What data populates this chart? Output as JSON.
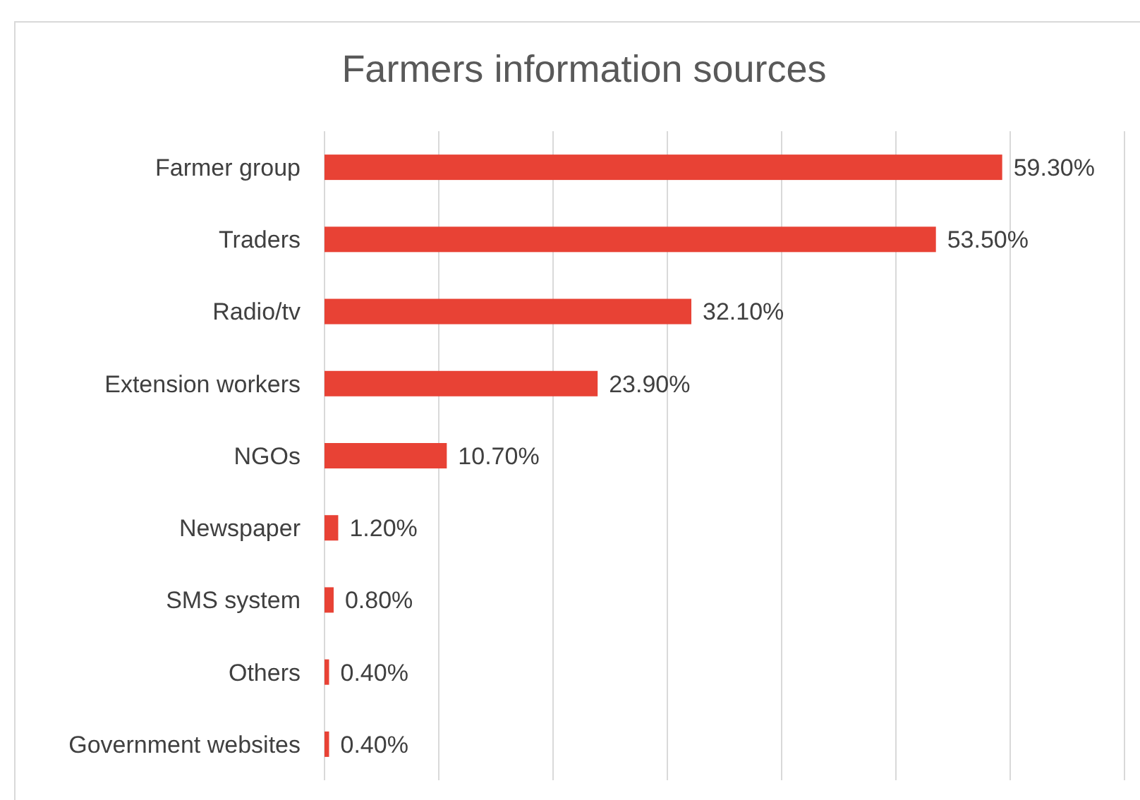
{
  "chart_data": {
    "type": "bar",
    "orientation": "horizontal",
    "title": "Farmers information sources",
    "categories": [
      "Farmer group",
      "Traders",
      "Radio/tv",
      "Extension workers",
      "NGOs",
      "Newspaper",
      "SMS system",
      "Others",
      "Government websites"
    ],
    "values": [
      59.3,
      53.5,
      32.1,
      23.9,
      10.7,
      1.2,
      0.8,
      0.4,
      0.4
    ],
    "value_labels": [
      "59.30%",
      "53.50%",
      "32.10%",
      "23.90%",
      "10.70%",
      "1.20%",
      "0.80%",
      "0.40%",
      "0.40%"
    ],
    "color": "#e84235",
    "xlim": [
      0,
      70
    ],
    "xticks": [
      {
        "value": 0,
        "label": null
      },
      {
        "value": 10,
        "label": null
      },
      {
        "value": 20,
        "label": null
      },
      {
        "value": 30,
        "label": null
      },
      {
        "value": 40,
        "label": null
      },
      {
        "value": 50,
        "label": null
      },
      {
        "value": 60,
        "label": null
      },
      {
        "value": 70,
        "label": null
      }
    ],
    "grid": "x",
    "tick_labels": "y"
  }
}
